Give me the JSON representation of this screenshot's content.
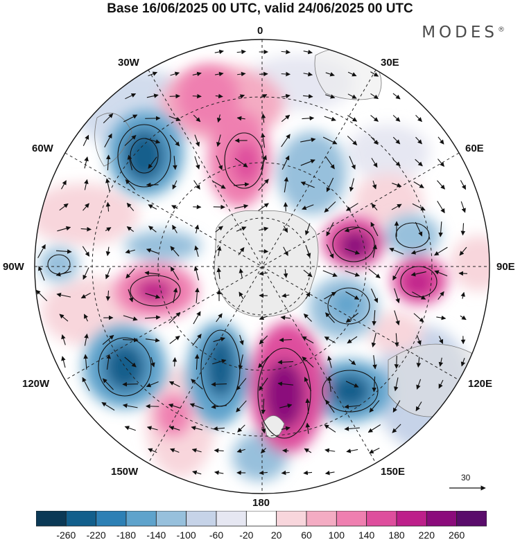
{
  "title": "Base 16/06/2025 00 UTC, valid 24/06/2025 00 UTC",
  "brand": "MODES",
  "brand_mark": "®",
  "longitude_labels": {
    "n": "0",
    "s": "180",
    "w90": "90W",
    "e90": "90E",
    "w30": "30W",
    "e30": "30E",
    "w60": "60W",
    "e60": "60E",
    "w120": "120W",
    "e120": "120E",
    "w150": "150W",
    "e150": "150E"
  },
  "vector_scale_label": "30",
  "colorbar": {
    "ticks": [
      "-260",
      "-220",
      "-180",
      "-140",
      "-100",
      "-60",
      "-20",
      "20",
      "60",
      "100",
      "140",
      "180",
      "220",
      "260"
    ],
    "colors": [
      "#0b3956",
      "#125f8c",
      "#2d80b5",
      "#5ea3cc",
      "#97c0dc",
      "#c6d3e8",
      "#e6e7f2",
      "#ffffff",
      "#f8d6dc",
      "#f4acc3",
      "#ef7fb0",
      "#de4e9d",
      "#bd1f8a",
      "#8b0b7b",
      "#5a0c6b"
    ]
  },
  "colors": {
    "land": "#ececec",
    "graticule": "#222222",
    "coast": "#777777"
  }
}
